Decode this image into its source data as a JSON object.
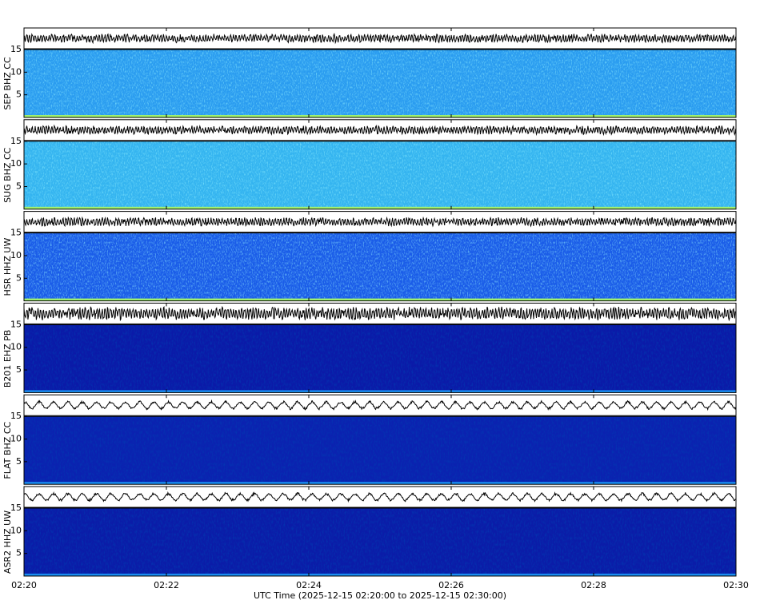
{
  "chart_data": {
    "type": "spectrogram",
    "xlabel": "UTC Time (2025-12-15 02:20:00 to 2025-12-15 02:30:00)",
    "xlim": [
      "02:20",
      "02:30"
    ],
    "xticks": [
      "02:20",
      "02:22",
      "02:24",
      "02:26",
      "02:28",
      "02:30"
    ],
    "ylim": [
      0,
      15
    ],
    "yticks": [
      5,
      10,
      15
    ],
    "series": [
      {
        "name": "SEP BHZ CC",
        "color": "#2a9cf0"
      },
      {
        "name": "SUG BHZ CC",
        "color": "#34b4f0"
      },
      {
        "name": "HSR HHZ UW",
        "color": "#1a5ce8"
      },
      {
        "name": "B201 EHZ PB",
        "color": "#0a1aa8"
      },
      {
        "name": "FLAT BHZ CC",
        "color": "#0a22b0"
      },
      {
        "name": "ASR2 HHZ UW",
        "color": "#0a1ca8"
      }
    ]
  }
}
